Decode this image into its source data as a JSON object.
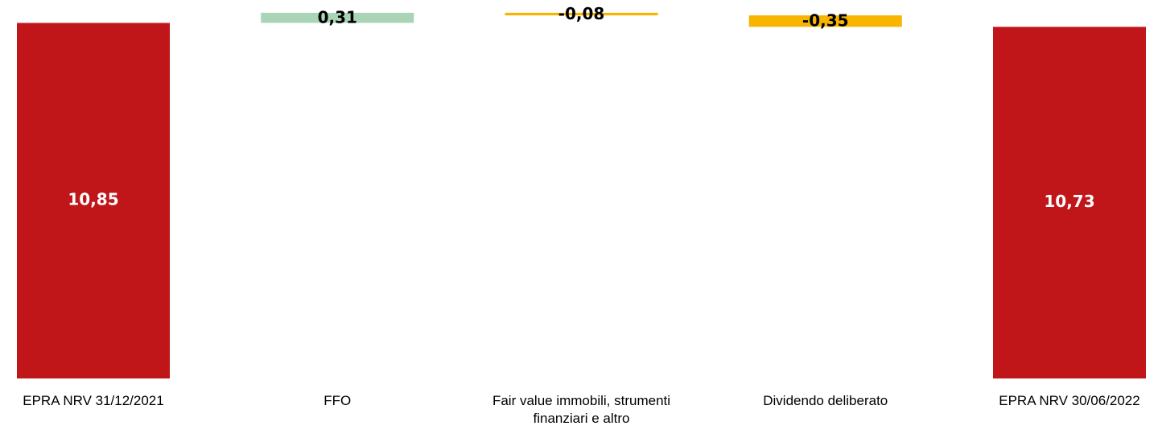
{
  "chart_data": {
    "type": "waterfall",
    "categories": [
      "EPRA NRV 31/12/2021",
      "FFO",
      "Fair value immobili, strumenti finanziari e altro",
      "Dividendo deliberato",
      "EPRA NRV 30/06/2022"
    ],
    "values": [
      10.85,
      0.31,
      -0.08,
      -0.35,
      10.73
    ],
    "value_labels": [
      "10,85",
      "0,31",
      "-0,08",
      "-0,35",
      "10,73"
    ],
    "is_total": [
      true,
      false,
      false,
      false,
      true
    ],
    "total_color": "#c0161a",
    "increase_color": "#a9d5b6",
    "decrease_color": "#f7b500",
    "ylim": [
      0,
      11.5
    ]
  }
}
